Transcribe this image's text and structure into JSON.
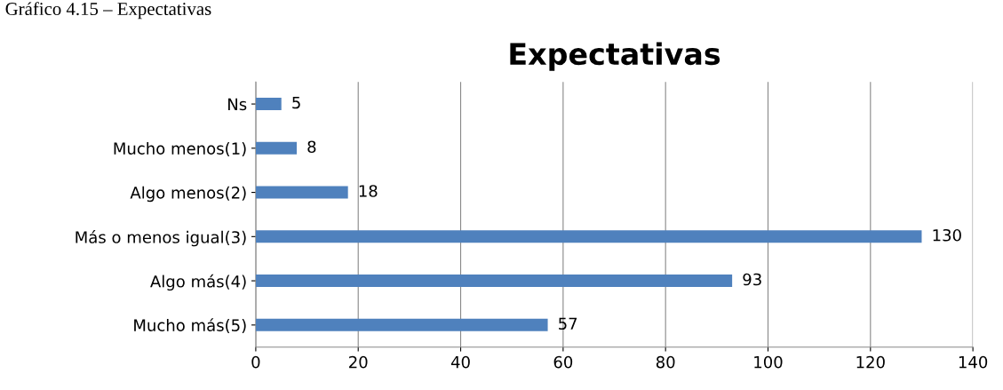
{
  "chart_data": {
    "type": "bar",
    "orientation": "horizontal",
    "title": "Expectativas",
    "annotations": [
      "Gráfico 4.15 – Expectativas"
    ],
    "categories": [
      "Ns",
      "Mucho menos(1)",
      "Algo menos(2)",
      "Más o menos igual(3)",
      "Algo más(4)",
      "Mucho más(5)"
    ],
    "values": [
      5,
      8,
      18,
      130,
      93,
      57
    ],
    "color": "#4f81bd",
    "data_labels": true,
    "xlim": [
      0,
      140
    ],
    "xticks": [
      0,
      20,
      40,
      60,
      80,
      100,
      120,
      140
    ],
    "grid": "x",
    "legend": false
  }
}
